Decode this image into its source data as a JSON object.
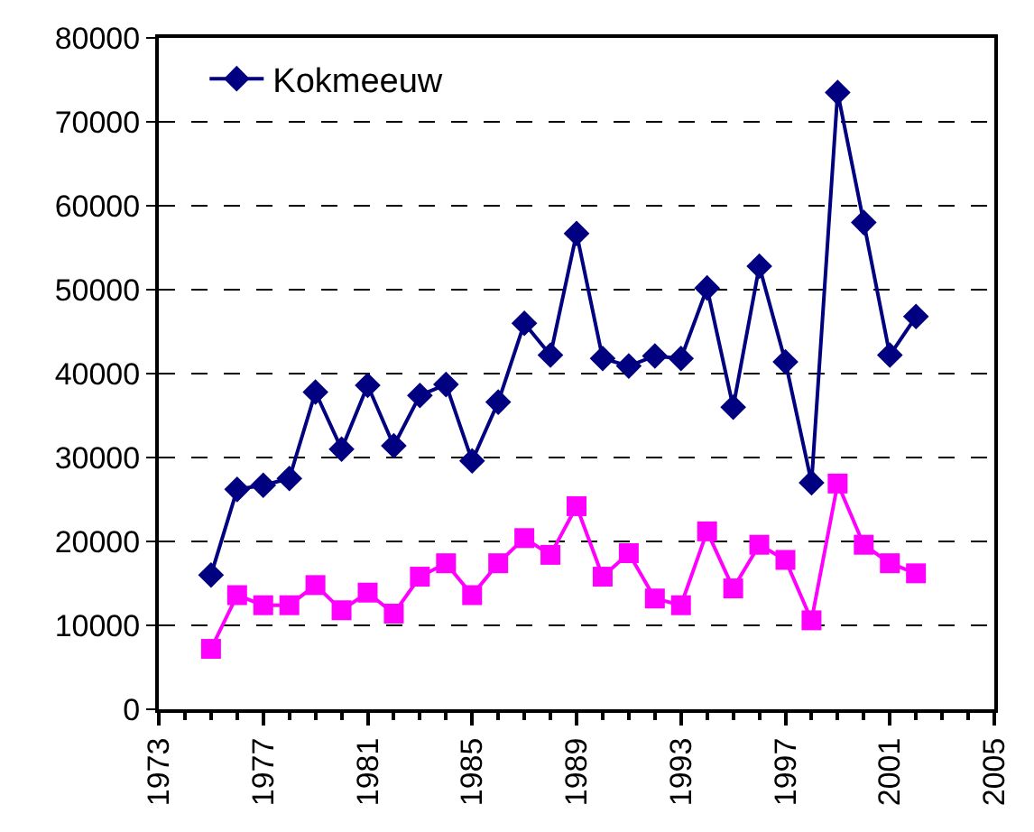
{
  "chart_data": {
    "type": "line",
    "x": [
      1975,
      1976,
      1977,
      1978,
      1979,
      1980,
      1981,
      1982,
      1983,
      1984,
      1985,
      1986,
      1987,
      1988,
      1989,
      1990,
      1991,
      1992,
      1993,
      1994,
      1995,
      1996,
      1997,
      1998,
      1999,
      2000,
      2001,
      2002
    ],
    "series": [
      {
        "name": "Kokmeeuw",
        "color": "#000080",
        "marker": "diamond",
        "values": [
          16000,
          26200,
          26700,
          27500,
          37800,
          31000,
          38600,
          31400,
          37400,
          38700,
          29600,
          36600,
          46000,
          42200,
          56700,
          41800,
          40900,
          42100,
          41800,
          50200,
          36000,
          52800,
          41400,
          27000,
          73500,
          58000,
          42200,
          46800
        ]
      },
      {
        "color": "#ff00ff",
        "marker": "square",
        "values": [
          7200,
          13600,
          12400,
          12400,
          14800,
          11800,
          13900,
          11400,
          15800,
          17400,
          13600,
          17400,
          20400,
          18400,
          24200,
          15800,
          18600,
          13200,
          12400,
          21200,
          14400,
          19600,
          17800,
          10600,
          26900,
          19600,
          17400,
          16200
        ]
      }
    ],
    "xlim": [
      1973,
      2005
    ],
    "xticks": [
      1973,
      1977,
      1981,
      1985,
      1989,
      1993,
      1997,
      2001,
      2005
    ],
    "ylim": [
      0,
      80000
    ],
    "yticks": [
      0,
      10000,
      20000,
      30000,
      40000,
      50000,
      60000,
      70000,
      80000
    ],
    "grid": "y",
    "legend": "top left",
    "line_style": "solid"
  }
}
